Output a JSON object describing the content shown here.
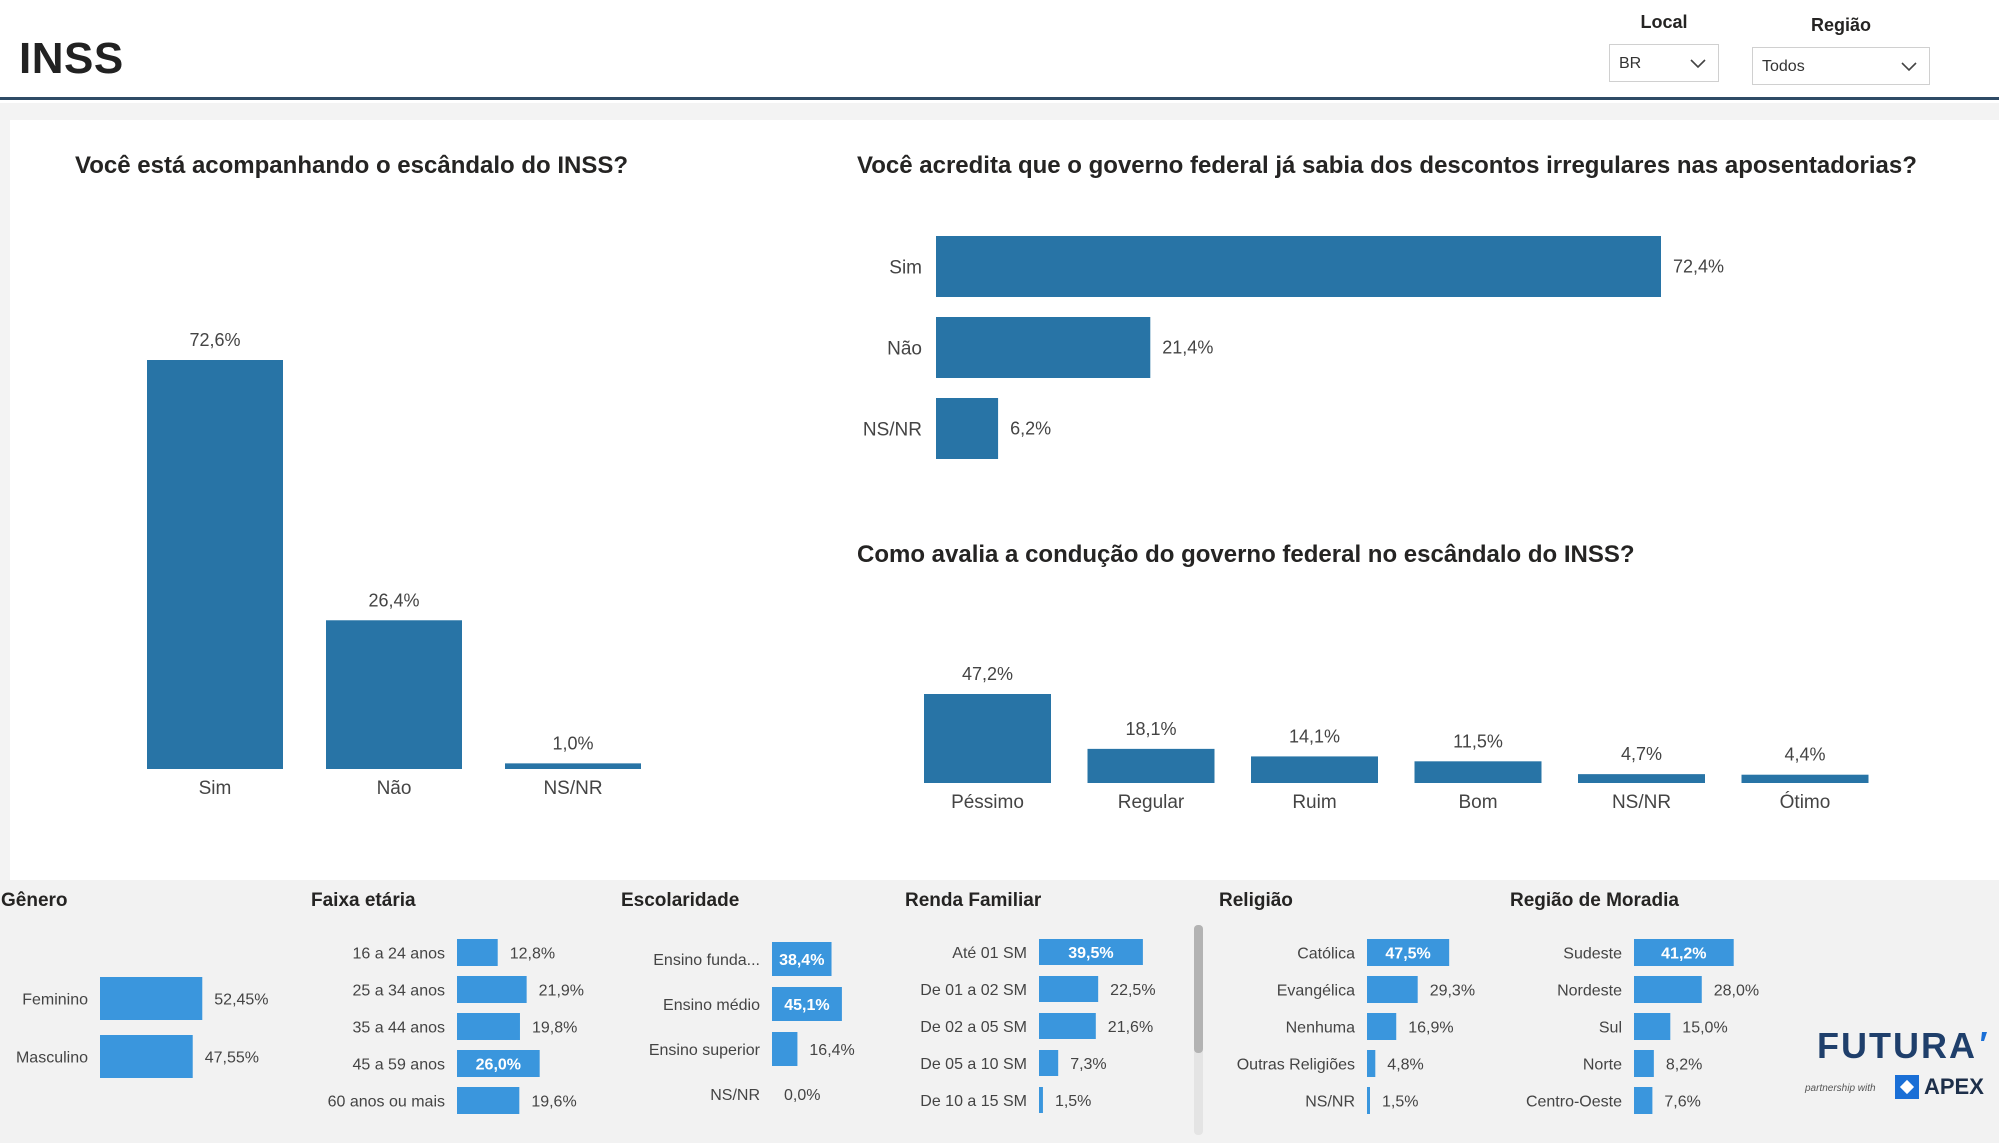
{
  "header": {
    "title": "INSS",
    "local": {
      "label": "Local",
      "value": "BR"
    },
    "regiao": {
      "label": "Região",
      "value": "Todos"
    }
  },
  "colors": {
    "primary_bar": "#2874a6",
    "secondary_bar": "#3a96dd",
    "divider": "#2f4b66"
  },
  "charts": {
    "acompanhando": {
      "title": "Você está acompanhando o escândalo do INSS?"
    },
    "sabia": {
      "title": "Você acredita que o governo federal já sabia dos descontos irregulares nas aposentadorias?"
    },
    "conducao": {
      "title": "Como avalia a condução do governo federal no escândalo do INSS?"
    }
  },
  "chart_data": [
    {
      "id": "acompanhando",
      "type": "bar",
      "orientation": "vertical",
      "categories": [
        "Sim",
        "Não",
        "NS/NR"
      ],
      "values": [
        72.6,
        26.4,
        1.0
      ],
      "labels": [
        "72,6%",
        "26,4%",
        "1,0%"
      ],
      "ylim": [
        0,
        72.6
      ]
    },
    {
      "id": "sabia",
      "type": "bar",
      "orientation": "horizontal",
      "categories": [
        "Sim",
        "Não",
        "NS/NR"
      ],
      "values": [
        72.4,
        21.4,
        6.2
      ],
      "labels": [
        "72,4%",
        "21,4%",
        "6,2%"
      ],
      "xlim": [
        0,
        72.4
      ]
    },
    {
      "id": "conducao",
      "type": "bar",
      "orientation": "vertical",
      "categories": [
        "Péssimo",
        "Regular",
        "Ruim",
        "Bom",
        "NS/NR",
        "Ótimo"
      ],
      "values": [
        47.2,
        18.1,
        14.1,
        11.5,
        4.7,
        4.4
      ],
      "labels": [
        "47,2%",
        "18,1%",
        "14,1%",
        "11,5%",
        "4,7%",
        "4,4%"
      ],
      "ylim": [
        0,
        47.2
      ]
    },
    {
      "id": "genero",
      "type": "bar",
      "orientation": "horizontal",
      "title": "Gênero",
      "categories": [
        "Feminino",
        "Masculino"
      ],
      "values": [
        52.45,
        47.55
      ],
      "labels": [
        "52,45%",
        "47,55%"
      ],
      "inside": [
        false,
        false
      ]
    },
    {
      "id": "faixa",
      "type": "bar",
      "orientation": "horizontal",
      "title": "Faixa etária",
      "categories": [
        "16 a 24 anos",
        "25 a 34 anos",
        "35 a 44 anos",
        "45 a 59 anos",
        "60 anos ou mais"
      ],
      "values": [
        12.8,
        21.9,
        19.8,
        26.0,
        19.6
      ],
      "labels": [
        "12,8%",
        "21,9%",
        "19,8%",
        "26,0%",
        "19,6%"
      ],
      "inside": [
        false,
        false,
        false,
        true,
        false
      ]
    },
    {
      "id": "escolaridade",
      "type": "bar",
      "orientation": "horizontal",
      "title": "Escolaridade",
      "categories": [
        "Ensino funda...",
        "Ensino médio",
        "Ensino superior",
        "NS/NR"
      ],
      "values": [
        38.4,
        45.1,
        16.4,
        0.0
      ],
      "labels": [
        "38,4%",
        "45,1%",
        "16,4%",
        "0,0%"
      ],
      "inside": [
        true,
        true,
        false,
        false
      ]
    },
    {
      "id": "renda",
      "type": "bar",
      "orientation": "horizontal",
      "title": "Renda Familiar",
      "categories": [
        "Até 01 SM",
        "De 01 a 02 SM",
        "De 02 a 05 SM",
        "De 05 a 10 SM",
        "De 10 a 15 SM"
      ],
      "values": [
        39.5,
        22.5,
        21.6,
        7.3,
        1.5
      ],
      "labels": [
        "39,5%",
        "22,5%",
        "21,6%",
        "7,3%",
        "1,5%"
      ],
      "inside": [
        true,
        false,
        false,
        false,
        false
      ]
    },
    {
      "id": "religiao",
      "type": "bar",
      "orientation": "horizontal",
      "title": "Religião",
      "categories": [
        "Católica",
        "Evangélica",
        "Nenhuma",
        "Outras Religiões",
        "NS/NR"
      ],
      "values": [
        47.5,
        29.3,
        16.9,
        4.8,
        1.5
      ],
      "labels": [
        "47,5%",
        "29,3%",
        "16,9%",
        "4,8%",
        "1,5%"
      ],
      "inside": [
        true,
        false,
        false,
        false,
        false
      ]
    },
    {
      "id": "regiao",
      "type": "bar",
      "orientation": "horizontal",
      "title": "Região de Moradia",
      "categories": [
        "Sudeste",
        "Nordeste",
        "Sul",
        "Norte",
        "Centro-Oeste"
      ],
      "values": [
        41.2,
        28.0,
        15.0,
        8.2,
        7.6
      ],
      "labels": [
        "41,2%",
        "28,0%",
        "15,0%",
        "8,2%",
        "7,6%"
      ],
      "inside": [
        true,
        false,
        false,
        false,
        false
      ]
    }
  ],
  "logo": {
    "name": "FUTURA",
    "partner_text": "partnership with",
    "partner_name": "APEX"
  }
}
